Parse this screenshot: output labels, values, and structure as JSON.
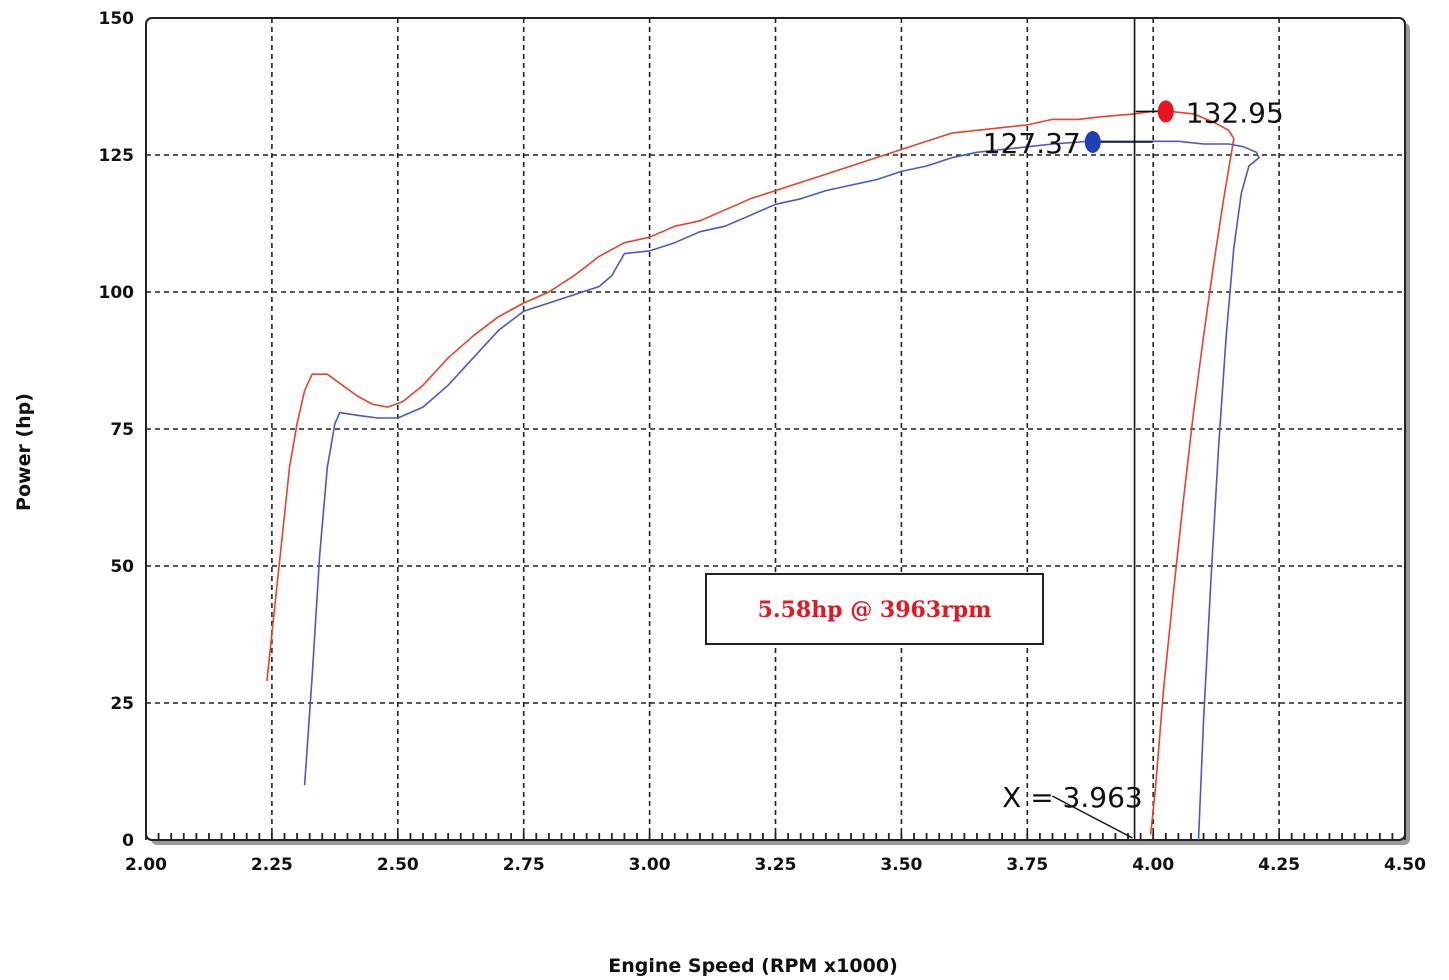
{
  "chart_data": {
    "type": "line",
    "title": "",
    "xlabel": "Engine Speed (RPM x1000)",
    "ylabel": "Power (hp)",
    "xlim": [
      2.0,
      4.5
    ],
    "ylim": [
      0,
      150
    ],
    "grid": true,
    "x_ticks": [
      "2.00",
      "2.25",
      "2.50",
      "2.75",
      "3.00",
      "3.25",
      "3.50",
      "3.75",
      "4.00",
      "4.25",
      "4.50"
    ],
    "y_ticks": [
      "0",
      "25",
      "50",
      "75",
      "100",
      "125",
      "150"
    ],
    "colors": {
      "red_series": "#e8412c",
      "blue_series": "#4a58c8",
      "red_marker": "#e8141e",
      "blue_marker": "#2040b8",
      "annotation": "#e8141e"
    },
    "series": [
      {
        "color": "red",
        "points": [
          [
            2.24,
            29
          ],
          [
            2.255,
            42
          ],
          [
            2.27,
            55
          ],
          [
            2.285,
            68
          ],
          [
            2.3,
            76
          ],
          [
            2.315,
            82
          ],
          [
            2.33,
            85
          ],
          [
            2.36,
            85
          ],
          [
            2.39,
            83
          ],
          [
            2.42,
            81
          ],
          [
            2.45,
            79.5
          ],
          [
            2.48,
            79
          ],
          [
            2.51,
            80
          ],
          [
            2.55,
            83
          ],
          [
            2.6,
            88
          ],
          [
            2.65,
            92
          ],
          [
            2.7,
            95.5
          ],
          [
            2.75,
            98
          ],
          [
            2.8,
            100
          ],
          [
            2.85,
            103
          ],
          [
            2.9,
            106.5
          ],
          [
            2.95,
            109
          ],
          [
            3.0,
            110
          ],
          [
            3.05,
            112
          ],
          [
            3.1,
            113
          ],
          [
            3.15,
            115
          ],
          [
            3.2,
            117
          ],
          [
            3.25,
            118.5
          ],
          [
            3.3,
            120
          ],
          [
            3.35,
            121.5
          ],
          [
            3.4,
            123
          ],
          [
            3.45,
            124.5
          ],
          [
            3.5,
            126
          ],
          [
            3.55,
            127.5
          ],
          [
            3.6,
            129
          ],
          [
            3.65,
            129.5
          ],
          [
            3.7,
            130
          ],
          [
            3.75,
            130.5
          ],
          [
            3.8,
            131.5
          ],
          [
            3.85,
            131.5
          ],
          [
            3.9,
            132
          ],
          [
            3.963,
            132.5
          ],
          [
            4.0,
            133
          ],
          [
            4.03,
            133
          ],
          [
            4.08,
            132.5
          ],
          [
            4.12,
            131
          ],
          [
            4.15,
            129.5
          ],
          [
            4.16,
            128
          ],
          [
            4.14,
            117
          ],
          [
            4.12,
            105
          ],
          [
            4.1,
            92
          ],
          [
            4.08,
            78
          ],
          [
            4.06,
            62
          ],
          [
            4.04,
            45
          ],
          [
            4.02,
            27
          ],
          [
            4.005,
            10
          ],
          [
            3.995,
            1
          ]
        ]
      },
      {
        "color": "blue",
        "points": [
          [
            2.315,
            10
          ],
          [
            2.33,
            30
          ],
          [
            2.345,
            52
          ],
          [
            2.36,
            68
          ],
          [
            2.375,
            76
          ],
          [
            2.385,
            78
          ],
          [
            2.42,
            77.5
          ],
          [
            2.46,
            77
          ],
          [
            2.5,
            77
          ],
          [
            2.55,
            79
          ],
          [
            2.6,
            83
          ],
          [
            2.65,
            88
          ],
          [
            2.7,
            93
          ],
          [
            2.75,
            96.5
          ],
          [
            2.8,
            98
          ],
          [
            2.85,
            99.5
          ],
          [
            2.9,
            101
          ],
          [
            2.925,
            103
          ],
          [
            2.95,
            107
          ],
          [
            3.0,
            107.5
          ],
          [
            3.05,
            109
          ],
          [
            3.1,
            111
          ],
          [
            3.15,
            112
          ],
          [
            3.2,
            114
          ],
          [
            3.25,
            116
          ],
          [
            3.3,
            117
          ],
          [
            3.35,
            118.5
          ],
          [
            3.4,
            119.5
          ],
          [
            3.45,
            120.5
          ],
          [
            3.5,
            122
          ],
          [
            3.55,
            123
          ],
          [
            3.6,
            124.5
          ],
          [
            3.65,
            125.5
          ],
          [
            3.7,
            126
          ],
          [
            3.75,
            126.5
          ],
          [
            3.8,
            127
          ],
          [
            3.87,
            127.5
          ],
          [
            3.963,
            127.5
          ],
          [
            4.0,
            127.5
          ],
          [
            4.05,
            127.5
          ],
          [
            4.1,
            127
          ],
          [
            4.15,
            127
          ],
          [
            4.18,
            126.5
          ],
          [
            4.205,
            125.5
          ],
          [
            4.21,
            124.5
          ],
          [
            4.19,
            123
          ],
          [
            4.175,
            118
          ],
          [
            4.16,
            108
          ],
          [
            4.145,
            92
          ],
          [
            4.13,
            72
          ],
          [
            4.115,
            48
          ],
          [
            4.1,
            22
          ],
          [
            4.09,
            0
          ]
        ]
      }
    ],
    "markers": [
      {
        "color": "red",
        "x": 4.025,
        "y": 132.95,
        "label": "132.95"
      },
      {
        "color": "blue",
        "x": 3.88,
        "y": 127.37,
        "label": "127.37"
      }
    ],
    "cursor": {
      "x": 3.963,
      "label": "X = 3.963"
    },
    "annotation": {
      "text": "5.58hp @ 3963rpm"
    }
  }
}
